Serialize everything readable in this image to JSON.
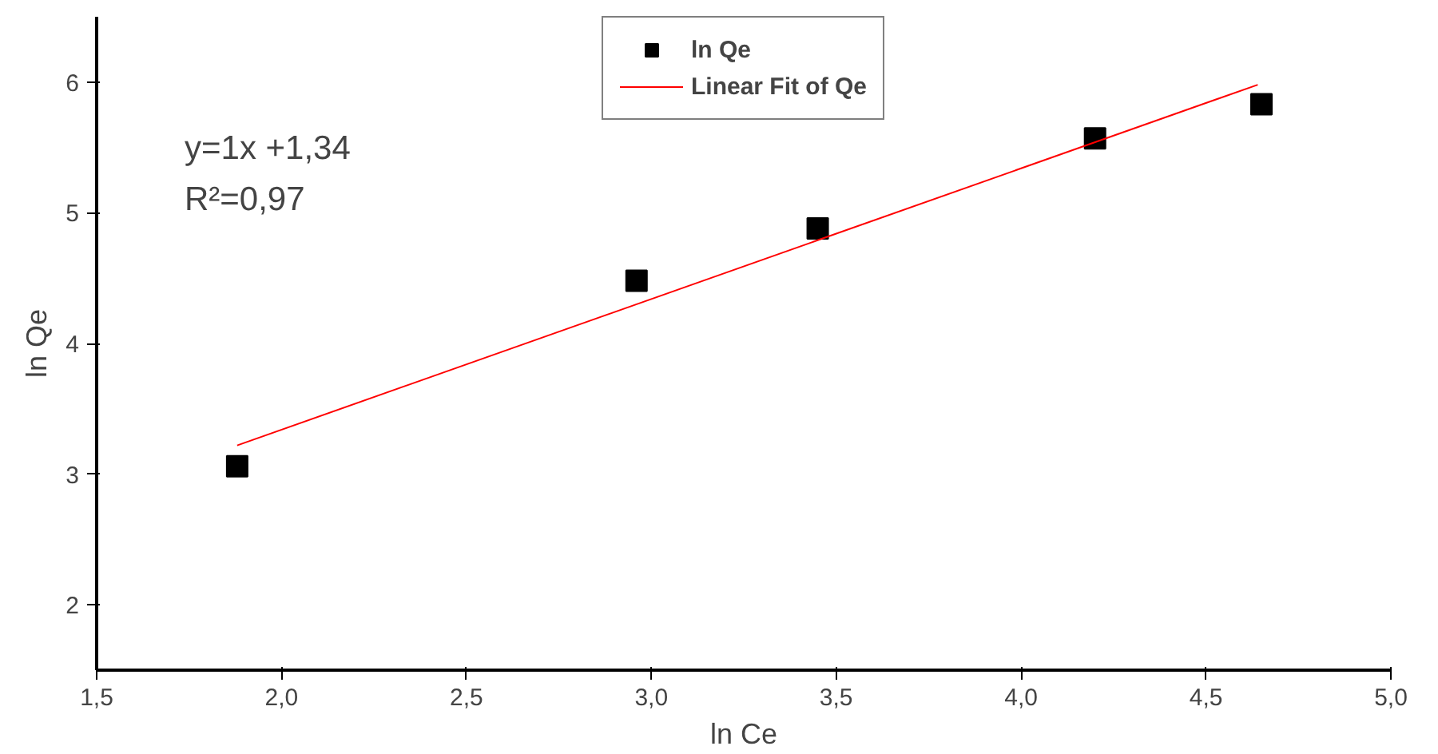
{
  "chart_data": {
    "type": "scatter",
    "xlabel": "ln Ce",
    "ylabel": "ln Qe",
    "xlim": [
      1.5,
      5.0
    ],
    "ylim": [
      1.5,
      6.5
    ],
    "xticks": [
      {
        "value": 1.5,
        "label": "1,5"
      },
      {
        "value": 2.0,
        "label": "2,0"
      },
      {
        "value": 2.5,
        "label": "2,5"
      },
      {
        "value": 3.0,
        "label": "3,0"
      },
      {
        "value": 3.5,
        "label": "3,5"
      },
      {
        "value": 4.0,
        "label": "4,0"
      },
      {
        "value": 4.5,
        "label": "4,5"
      },
      {
        "value": 5.0,
        "label": "5,0"
      }
    ],
    "yticks": [
      2,
      3,
      4,
      5,
      6
    ],
    "series": [
      {
        "name": "ln Qe",
        "marker": "square",
        "color": "#000000",
        "x": [
          1.88,
          2.96,
          3.45,
          4.2,
          4.65
        ],
        "values": [
          3.06,
          4.48,
          4.88,
          5.57,
          5.83
        ]
      },
      {
        "name": "Linear Fit of Qe",
        "type": "line",
        "marker": "none",
        "line_style": "solid",
        "color": "#ff0000",
        "x": [
          1.88,
          4.64
        ],
        "values": [
          3.22,
          5.98
        ]
      }
    ],
    "annotations": [
      "y=1x +1,34",
      "R²=0,97"
    ],
    "legend": "top",
    "grid": false
  }
}
